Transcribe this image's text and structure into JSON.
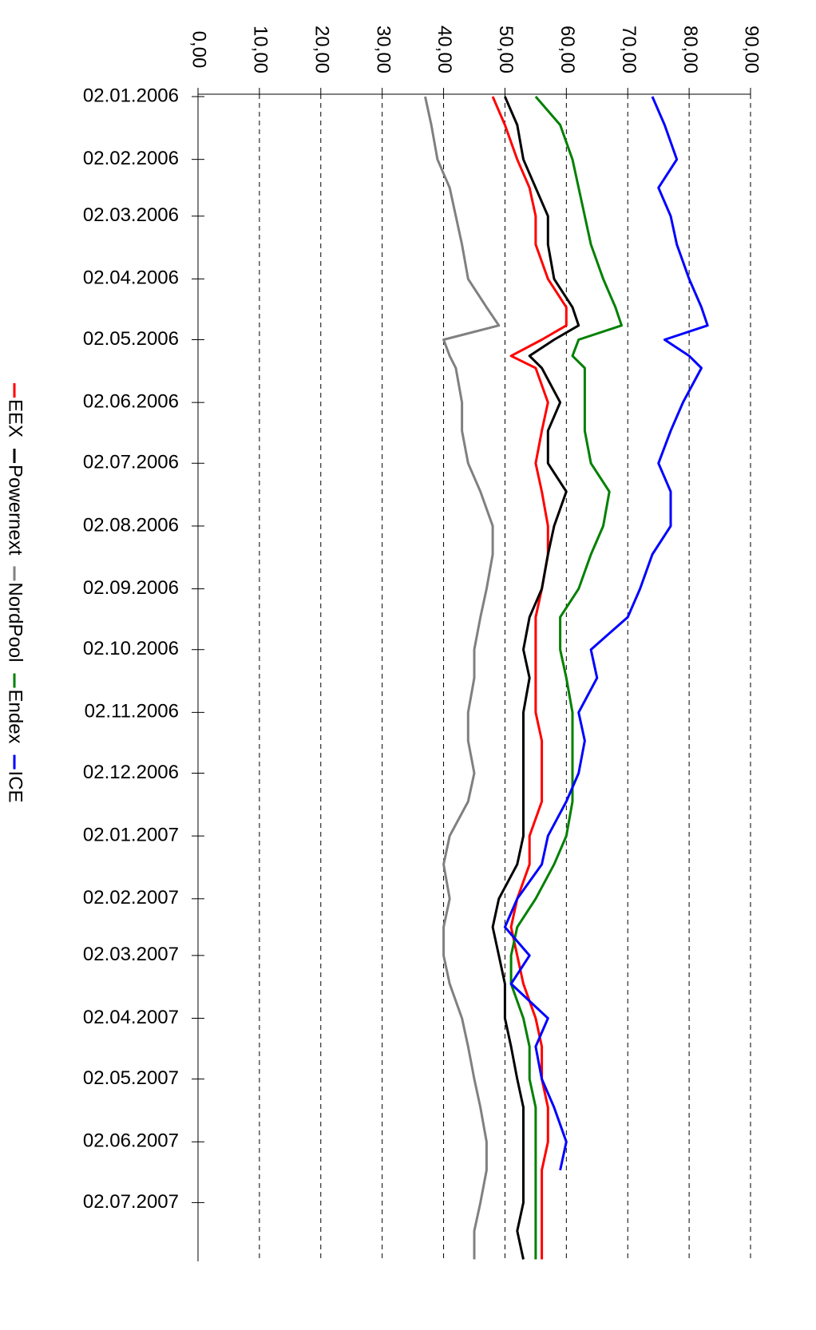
{
  "chart_data": {
    "type": "line",
    "orientation": "vertical-dates",
    "x": [
      "02.01.2006",
      "16.01.2006",
      "02.02.2006",
      "16.02.2006",
      "02.03.2006",
      "16.03.2006",
      "02.04.2006",
      "16.04.2006",
      "25.04.2006",
      "02.05.2006",
      "10.05.2006",
      "16.05.2006",
      "02.06.2006",
      "16.06.2006",
      "02.07.2006",
      "16.07.2006",
      "02.08.2006",
      "16.08.2006",
      "02.09.2006",
      "16.09.2006",
      "02.10.2006",
      "16.10.2006",
      "02.11.2006",
      "16.11.2006",
      "02.12.2006",
      "16.12.2006",
      "02.01.2007",
      "16.01.2007",
      "02.02.2007",
      "16.02.2007",
      "02.03.2007",
      "16.03.2007",
      "02.04.2007",
      "16.04.2007",
      "02.05.2007",
      "16.05.2007",
      "02.06.2007",
      "16.06.2007",
      "02.07.2007",
      "16.07.2007",
      "30.07.2007"
    ],
    "series": [
      {
        "name": "EEX",
        "color": "#ff0000",
        "values": [
          48,
          50,
          52,
          54,
          55,
          55,
          57,
          60,
          60,
          56,
          51,
          55,
          57,
          56,
          55,
          56,
          57,
          57,
          56,
          55,
          55,
          55,
          55,
          56,
          56,
          56,
          54,
          54,
          52,
          51,
          52,
          53,
          55,
          56,
          56,
          57,
          57,
          56,
          56,
          56,
          56
        ]
      },
      {
        "name": "Powernext",
        "color": "#000000",
        "values": [
          50,
          52,
          53,
          55,
          57,
          57,
          58,
          61,
          62,
          58,
          54,
          56,
          59,
          57,
          57,
          60,
          58,
          57,
          56,
          54,
          53,
          54,
          53,
          53,
          53,
          53,
          53,
          52,
          49,
          48,
          49,
          50,
          50,
          51,
          52,
          53,
          53,
          53,
          53,
          52,
          53
        ]
      },
      {
        "name": "NordPool",
        "color": "#808080",
        "values": [
          37,
          38,
          39,
          41,
          42,
          43,
          44,
          47,
          49,
          40,
          41,
          42,
          43,
          43,
          44,
          46,
          48,
          48,
          47,
          46,
          45,
          45,
          44,
          44,
          45,
          44,
          41,
          40,
          41,
          40,
          40,
          41,
          43,
          44,
          45,
          46,
          47,
          47,
          46,
          45,
          45
        ]
      },
      {
        "name": "Endex",
        "color": "#008000",
        "values": [
          55,
          59,
          61,
          62,
          63,
          64,
          66,
          68,
          69,
          62,
          61,
          63,
          63,
          63,
          64,
          67,
          66,
          64,
          62,
          59,
          59,
          60,
          61,
          61,
          61,
          61,
          60,
          58,
          55,
          52,
          51,
          51,
          53,
          54,
          54,
          55,
          55,
          55,
          55,
          55,
          55
        ]
      },
      {
        "name": "ICE",
        "color": "#0000ff",
        "values": [
          74,
          76,
          78,
          75,
          77,
          78,
          80,
          82,
          83,
          76,
          80,
          82,
          79,
          77,
          75,
          77,
          77,
          74,
          72,
          70,
          64,
          65,
          62,
          63,
          62,
          60,
          57,
          56,
          52,
          50,
          54,
          51,
          57,
          55,
          56,
          58,
          60,
          59,
          null,
          null,
          null
        ]
      }
    ],
    "xlim": [
      "02.01.2006",
      "31.07.2007"
    ],
    "xticks": [
      "02.01.2006",
      "02.02.2006",
      "02.03.2006",
      "02.04.2006",
      "02.05.2006",
      "02.06.2006",
      "02.07.2006",
      "02.08.2006",
      "02.09.2006",
      "02.10.2006",
      "02.11.2006",
      "02.12.2006",
      "02.01.2007",
      "02.02.2007",
      "02.03.2007",
      "02.04.2007",
      "02.05.2007",
      "02.06.2007",
      "02.07.2007"
    ],
    "ylim": [
      0,
      90
    ],
    "yticks": [
      {
        "value": 0,
        "label": "0,00"
      },
      {
        "value": 10,
        "label": "10,00"
      },
      {
        "value": 20,
        "label": "20,00"
      },
      {
        "value": 30,
        "label": "30,00"
      },
      {
        "value": 40,
        "label": "40,00"
      },
      {
        "value": 50,
        "label": "50,00"
      },
      {
        "value": 60,
        "label": "60,00"
      },
      {
        "value": 70,
        "label": "70,00"
      },
      {
        "value": 80,
        "label": "80,00"
      },
      {
        "value": 90,
        "label": "90,00"
      }
    ],
    "grid": true,
    "legend": "left"
  }
}
